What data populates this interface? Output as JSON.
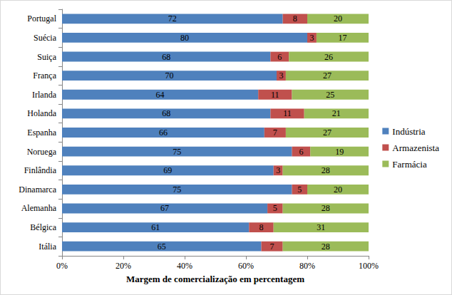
{
  "chart_data": {
    "type": "bar",
    "orientation": "horizontal",
    "stacked": true,
    "data_labels": true,
    "grid": false,
    "legend": "right",
    "x_label": "Margem de comercialização em percentagem",
    "categories": [
      "Itália",
      "Bélgica",
      "Alemanha",
      "Dinamarca",
      "Finlândia",
      "Noruega",
      "Espanha",
      "Holanda",
      "Irlanda",
      "França",
      "Suiça",
      "Suécia",
      "Portugal"
    ],
    "series": [
      {
        "name": "Indústria",
        "color": "#4f81bd",
        "values": [
          65,
          61,
          67,
          75,
          69,
          75,
          66,
          68,
          64,
          70,
          68,
          80,
          72
        ]
      },
      {
        "name": "Armazenista",
        "color": "#c0504d",
        "values": [
          7,
          8,
          5,
          5,
          3,
          6,
          7,
          11,
          11,
          3,
          6,
          3,
          8
        ]
      },
      {
        "name": "Farmácia",
        "color": "#9bbb59",
        "values": [
          28,
          31,
          28,
          20,
          28,
          19,
          27,
          21,
          25,
          27,
          26,
          17,
          20
        ]
      }
    ],
    "xlim": [
      0,
      100
    ],
    "xticks": [
      {
        "value": 0,
        "label": "0%"
      },
      {
        "value": 20,
        "label": "20%"
      },
      {
        "value": 40,
        "label": "40%"
      },
      {
        "value": 60,
        "label": "60%"
      },
      {
        "value": 80,
        "label": "80%"
      },
      {
        "value": 100,
        "label": "100%"
      }
    ]
  }
}
